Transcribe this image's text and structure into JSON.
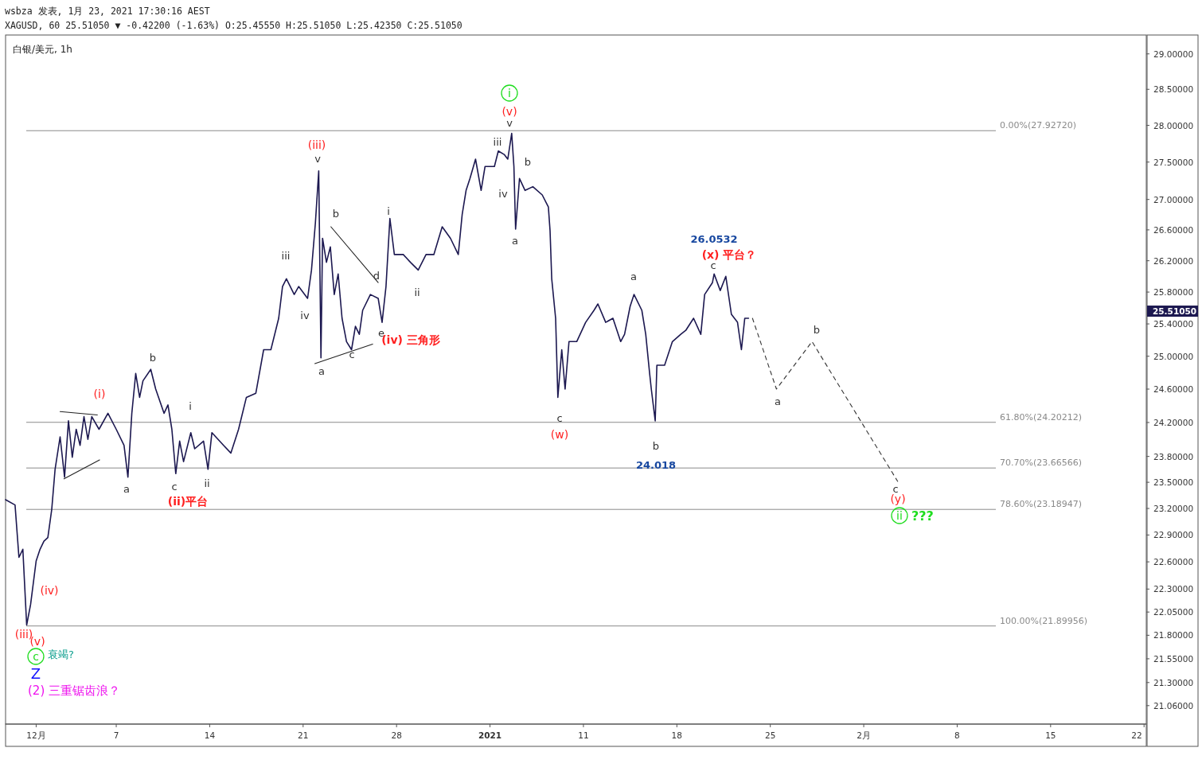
{
  "chart_data": {
    "type": "line",
    "title": "白银/美元, 1h",
    "xlim": [
      "2020-11-28T17:00",
      "2021-02-22T04:00"
    ],
    "ylim": [
      20.87,
      29.27
    ],
    "log": "y",
    "xticks": [
      {
        "value": "2020-12-01",
        "label": "12月"
      },
      {
        "value": "2020-12-07",
        "label": "7"
      },
      {
        "value": "2020-12-14",
        "label": "14"
      },
      {
        "value": "2020-12-21",
        "label": "21"
      },
      {
        "value": "2020-12-28",
        "label": "28"
      },
      {
        "value": "2021-01-04",
        "label": "2021"
      },
      {
        "value": "2021-01-11",
        "label": "11"
      },
      {
        "value": "2021-01-18",
        "label": "18"
      },
      {
        "value": "2021-01-25",
        "label": "25"
      },
      {
        "value": "2021-02-01",
        "label": "2月"
      },
      {
        "value": "2021-02-08",
        "label": "8"
      },
      {
        "value": "2021-02-15",
        "label": "15"
      },
      {
        "value": "2021-02-22",
        "label": "22"
      }
    ],
    "yticks": [
      {
        "value": 29,
        "label": "29.00000"
      },
      {
        "value": 28.5,
        "label": "28.50000"
      },
      {
        "value": 28,
        "label": "28.00000"
      },
      {
        "value": 27.5,
        "label": "27.50000"
      },
      {
        "value": 27,
        "label": "27.00000"
      },
      {
        "value": 26.6,
        "label": "26.60000"
      },
      {
        "value": 26.2,
        "label": "26.20000"
      },
      {
        "value": 25.8,
        "label": "25.80000"
      },
      {
        "value": 25.4,
        "label": "25.40000"
      },
      {
        "value": 25,
        "label": "25.00000"
      },
      {
        "value": 24.6,
        "label": "24.60000"
      },
      {
        "value": 24.2,
        "label": "24.20000"
      },
      {
        "value": 23.8,
        "label": "23.80000"
      },
      {
        "value": 23.5,
        "label": "23.50000"
      },
      {
        "value": 23.2,
        "label": "23.20000"
      },
      {
        "value": 22.9,
        "label": "22.90000"
      },
      {
        "value": 22.6,
        "label": "22.60000"
      },
      {
        "value": 22.3,
        "label": "22.30000"
      },
      {
        "value": 22.05,
        "label": "22.05000"
      },
      {
        "value": 21.8,
        "label": "21.80000"
      },
      {
        "value": 21.55,
        "label": "21.55000"
      },
      {
        "value": 21.3,
        "label": "21.30000"
      },
      {
        "value": 21.06,
        "label": "21.06000"
      }
    ],
    "series": [
      {
        "color": "#1c1850",
        "x": [
          "2020-11-28T17:00",
          "2020-11-29T10:00",
          "2020-11-29T17:00",
          "2020-11-30T00:00",
          "2020-11-30T07:00",
          "2020-11-30T14:00",
          "2020-12-01T00:00",
          "2020-12-01T07:00",
          "2020-12-01T14:00",
          "2020-12-01T21:00",
          "2020-12-02T04:00",
          "2020-12-02T10:00",
          "2020-12-02T19:00",
          "2020-12-03T03:00",
          "2020-12-03T10:00",
          "2020-12-03T17:00",
          "2020-12-04T00:00",
          "2020-12-04T07:00",
          "2020-12-04T14:00",
          "2020-12-04T21:00",
          "2020-12-05T04:00",
          "2020-12-05T17:00",
          "2020-12-06T09:00",
          "2020-12-07T00:00",
          "2020-12-07T14:00",
          "2020-12-07T21:00",
          "2020-12-08T04:00",
          "2020-12-08T11:00",
          "2020-12-08T18:00",
          "2020-12-09T00:00",
          "2020-12-09T14:00",
          "2020-12-09T23:00",
          "2020-12-10T14:00",
          "2020-12-10T21:00",
          "2020-12-11T04:00",
          "2020-12-11T11:00",
          "2020-12-11T18:00",
          "2020-12-12T01:00",
          "2020-12-12T14:00",
          "2020-12-12T21:00",
          "2020-12-13T13:00",
          "2020-12-13T21:00",
          "2020-12-14T04:00",
          "2020-12-15T01:00",
          "2020-12-15T14:00",
          "2020-12-16T04:00",
          "2020-12-16T18:00",
          "2020-12-17T11:00",
          "2020-12-18T01:00",
          "2020-12-18T14:00",
          "2020-12-19T04:00",
          "2020-12-19T11:00",
          "2020-12-19T18:00",
          "2020-12-20T08:00",
          "2020-12-20T16:00",
          "2020-12-21T08:00",
          "2020-12-21T15:00",
          "2020-12-21T22:00",
          "2020-12-22T04:00",
          "2020-12-22T08:00",
          "2020-12-22T11:00",
          "2020-12-22T18:00",
          "2020-12-23T01:00",
          "2020-12-23T08:00",
          "2020-12-23T15:00",
          "2020-12-23T22:00",
          "2020-12-24T06:00",
          "2020-12-24T15:00",
          "2020-12-24T22:00",
          "2020-12-25T05:00",
          "2020-12-25T11:00",
          "2020-12-26T01:00",
          "2020-12-26T15:00",
          "2020-12-26T22:00",
          "2020-12-27T05:00",
          "2020-12-27T12:00",
          "2020-12-27T20:00",
          "2020-12-28T12:00",
          "2020-12-29T01:00",
          "2020-12-29T15:00",
          "2020-12-30T05:00",
          "2020-12-30T19:00",
          "2020-12-31T10:00",
          "2021-01-01T01:00",
          "2021-01-01T15:00",
          "2021-01-01T22:00",
          "2021-01-02T05:00",
          "2021-01-02T12:00",
          "2021-01-02T22:00",
          "2021-01-03T08:00",
          "2021-01-03T15:00",
          "2021-01-04T08:00",
          "2021-01-04T15:00",
          "2021-01-05T02:00",
          "2021-01-05T08:00",
          "2021-01-05T15:00",
          "2021-01-05T19:00",
          "2021-01-05T22:00",
          "2021-01-06T05:00",
          "2021-01-06T15:00",
          "2021-01-07T05:00",
          "2021-01-07T22:00",
          "2021-01-08T09:00",
          "2021-01-08T12:00",
          "2021-01-08T15:00",
          "2021-01-08T22:00",
          "2021-01-09T02:00",
          "2021-01-09T09:00",
          "2021-01-09T15:00",
          "2021-01-09T22:00",
          "2021-01-10T12:00",
          "2021-01-11T04:00",
          "2021-01-11T19:00",
          "2021-01-12T02:00",
          "2021-01-12T16:00",
          "2021-01-13T05:00",
          "2021-01-13T19:00",
          "2021-01-14T02:00",
          "2021-01-14T12:00",
          "2021-01-14T19:00",
          "2021-01-15T09:00",
          "2021-01-15T16:00",
          "2021-01-15T23:00",
          "2021-01-16T02:00",
          "2021-01-16T09:00",
          "2021-01-16T12:00",
          "2021-01-17T02:00",
          "2021-01-17T16:00",
          "2021-01-18T07:00",
          "2021-01-18T16:00",
          "2021-01-19T06:00",
          "2021-01-19T19:00",
          "2021-01-20T02:00",
          "2021-01-20T16:00",
          "2021-01-20T19:00",
          "2021-01-21T06:00",
          "2021-01-21T16:00",
          "2021-01-22T02:00",
          "2021-01-22T13:00",
          "2021-01-22T20:00",
          "2021-01-23T02:00",
          "2021-01-23T09:00"
        ],
        "values": [
          23.3,
          23.24,
          22.65,
          22.74,
          21.91,
          22.13,
          22.61,
          22.74,
          22.83,
          22.87,
          23.19,
          23.65,
          24.03,
          23.56,
          24.22,
          23.79,
          24.12,
          23.93,
          24.27,
          24.0,
          24.27,
          24.12,
          24.31,
          24.12,
          23.93,
          23.56,
          24.31,
          24.79,
          24.5,
          24.7,
          24.84,
          24.6,
          24.31,
          24.41,
          24.12,
          23.6,
          23.98,
          23.74,
          24.08,
          23.89,
          23.98,
          23.65,
          24.08,
          23.93,
          23.84,
          24.12,
          24.5,
          24.55,
          25.08,
          25.08,
          25.47,
          25.87,
          25.97,
          25.77,
          25.87,
          25.72,
          26.08,
          26.69,
          27.38,
          24.98,
          26.49,
          26.18,
          26.38,
          25.77,
          26.03,
          25.47,
          25.18,
          25.08,
          25.37,
          25.27,
          25.57,
          25.77,
          25.72,
          25.42,
          25.87,
          26.75,
          26.28,
          26.28,
          26.18,
          26.08,
          26.28,
          26.28,
          26.64,
          26.49,
          26.28,
          26.8,
          27.12,
          27.28,
          27.54,
          27.12,
          27.44,
          27.44,
          27.65,
          27.6,
          27.54,
          27.89,
          27.44,
          26.61,
          27.28,
          27.12,
          27.17,
          27.06,
          26.9,
          26.59,
          25.97,
          25.47,
          24.5,
          25.08,
          24.6,
          25.18,
          25.18,
          25.42,
          25.57,
          25.65,
          25.42,
          25.47,
          25.18,
          25.27,
          25.62,
          25.77,
          25.57,
          25.27,
          24.79,
          24.6,
          24.22,
          24.89,
          24.89,
          25.18,
          25.27,
          25.32,
          25.47,
          25.27,
          25.77,
          25.92,
          26.03,
          25.82,
          26.0,
          25.52,
          25.42,
          25.08,
          25.47,
          25.47
        ]
      },
      {
        "color": "#222222",
        "x": [
          "2020-12-02T19:00",
          "2020-12-05T14:00"
        ],
        "values": [
          24.33,
          24.29
        ]
      },
      {
        "color": "#222222",
        "x": [
          "2020-12-03T02:00",
          "2020-12-05T18:00"
        ],
        "values": [
          23.54,
          23.76
        ]
      },
      {
        "color": "#222222",
        "x": [
          "2020-12-23T02:00",
          "2020-12-26T15:00"
        ],
        "values": [
          26.64,
          25.92
        ]
      },
      {
        "color": "#222222",
        "x": [
          "2020-12-21T21:00",
          "2020-12-26T05:00"
        ],
        "values": [
          24.91,
          25.15
        ]
      },
      {
        "color": "#333333",
        "line_style": "dashed",
        "x": [
          "2021-01-23T16:00",
          "2021-01-25T11:00",
          "2021-01-28T03:00",
          "2021-02-03T13:00"
        ],
        "values": [
          25.47,
          24.6,
          25.18,
          23.51
        ]
      }
    ],
    "ref_lines": [
      {
        "axis": "y",
        "value": 27.9272,
        "label": "0.00%(27.92720)",
        "color": "#8a8a8a"
      },
      {
        "axis": "y",
        "value": 24.20212,
        "label": "61.80%(24.20212)",
        "color": "#8a8a8a"
      },
      {
        "axis": "y",
        "value": 23.66566,
        "label": "70.70%(23.66566)",
        "color": "#8a8a8a"
      },
      {
        "axis": "y",
        "value": 23.18947,
        "label": "78.60%(23.18947)",
        "color": "#8a8a8a"
      },
      {
        "axis": "y",
        "value": 21.89956,
        "label": "100.00%(21.89956)",
        "color": "#8a8a8a"
      }
    ],
    "annotations": [
      "wsbza 发表, 1月 23, 2021 17:30:16 AEST",
      "XAGUSD, 60 25.51050 ▼ -0.42200 (-1.63%) O:25.45550 H:25.51050 L:25.42350 C:25.51050",
      "25.51050",
      "a",
      "b",
      "c",
      "i",
      "ii",
      "iii",
      "iv",
      "v",
      "a",
      "b",
      "c",
      "d",
      "e",
      "i",
      "ii",
      "iii",
      "iv",
      "v",
      "b",
      "a",
      "c",
      "a",
      "c",
      "b",
      "a",
      "b",
      "c",
      "(iii)",
      "(iv) 三角形",
      "(i)",
      "(ii)平台",
      "(v)",
      "(w)",
      "(x) 平台？",
      "(y)",
      "(iv)",
      "(iii)",
      "(v)",
      "i",
      "c",
      "ii",
      "衰竭?",
      "???",
      "26.0532",
      "24.018",
      "Z",
      "(2) 三重锯齿浪？"
    ]
  }
}
